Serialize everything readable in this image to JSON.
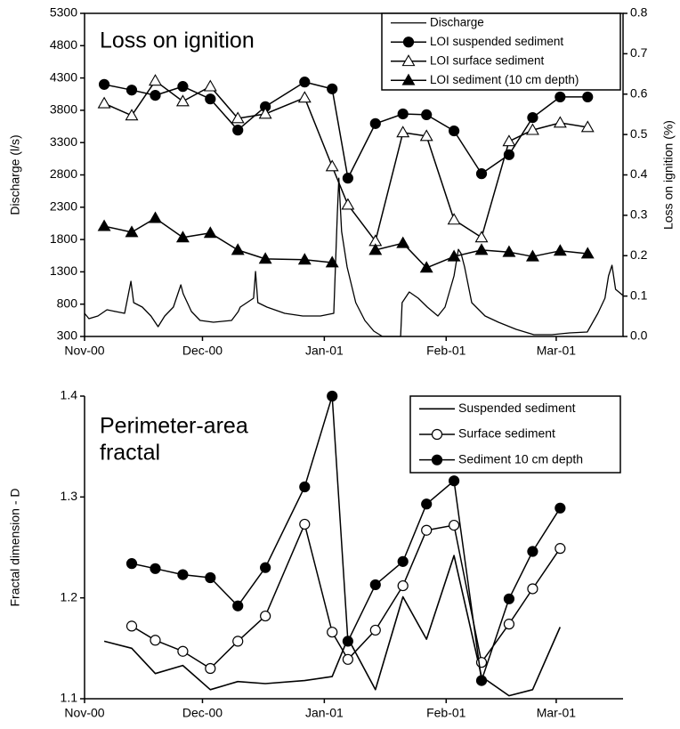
{
  "chart_data": [
    {
      "type": "line",
      "annotation": [
        "Loss on ignition"
      ],
      "y_label": "Discharge (l/s)",
      "y2_label": "Loss on ignition (%)",
      "xlim": [
        0,
        137
      ],
      "xticks": [
        {
          "value": 0,
          "label": "Nov-00"
        },
        {
          "value": 30,
          "label": "Dec-00"
        },
        {
          "value": 61,
          "label": "Jan-01"
        },
        {
          "value": 92,
          "label": "Feb-01"
        },
        {
          "value": 120,
          "label": "Mar-01"
        }
      ],
      "ylim": [
        300,
        5300
      ],
      "yticks": [
        300,
        800,
        1300,
        1800,
        2300,
        2800,
        3300,
        3800,
        4300,
        4800,
        5300
      ],
      "y2lim": [
        0,
        0.8
      ],
      "y2ticks": [
        {
          "value": 0,
          "label": "0.0"
        },
        0.1,
        0.2,
        0.3,
        0.4,
        0.5,
        0.6,
        0.7,
        0.8
      ],
      "legend": "upper right",
      "series": [
        {
          "name": "Discharge",
          "color": "#000000",
          "marker": "none",
          "line_width": 1.3,
          "x": [
            0,
            1.1,
            3.4,
            5.7,
            7.9,
            10.2,
            11.8,
            12.5,
            14.7,
            16.9,
            18.7,
            20.4,
            22.6,
            24.5,
            25.1,
            27.2,
            29.4,
            32.8,
            37.4,
            39.1,
            39.6,
            43.0,
            43.5,
            44.1,
            46.4,
            50.9,
            55.5,
            60.0,
            63.4,
            64.3,
            64.7,
            65.4,
            66.8,
            69.0,
            71.3,
            73.6,
            75.8,
            80.4,
            80.8,
            82.6,
            84.9,
            87.2,
            89.9,
            91.7,
            94.0,
            95.1,
            95.8,
            96.7,
            98.5,
            101.9,
            105.3,
            109.8,
            114.3,
            118.9,
            123.4,
            127.9,
            130.6,
            132.4,
            133.3,
            134.2,
            135.1,
            137
          ],
          "values": [
            658,
            575,
            617,
            713,
            686,
            658,
            1154,
            823,
            754,
            617,
            451,
            617,
            754,
            1099,
            961,
            686,
            548,
            520,
            548,
            686,
            754,
            892,
            1305,
            823,
            754,
            658,
            617,
            617,
            658,
            2200,
            2751,
            1925,
            1374,
            823,
            548,
            383,
            300,
            300,
            823,
            989,
            892,
            754,
            617,
            754,
            1236,
            1649,
            1581,
            1374,
            823,
            617,
            520,
            410,
            328,
            328,
            355,
            369,
            658,
            892,
            1236,
            1402,
            1030,
            933
          ]
        },
        {
          "name": "LOI suspended sediment",
          "color": "#000000",
          "marker": "circle-filled",
          "axis": "y2",
          "x": [
            5,
            12,
            18,
            25,
            32,
            39,
            46,
            56,
            63,
            67,
            74,
            81,
            87,
            94,
            101,
            108,
            114,
            121,
            128
          ],
          "values": [
            0.624,
            0.61,
            0.597,
            0.619,
            0.588,
            0.511,
            0.569,
            0.63,
            0.613,
            0.392,
            0.527,
            0.551,
            0.549,
            0.509,
            0.403,
            0.45,
            0.542,
            0.593,
            0.593
          ]
        },
        {
          "name": "LOI surface sediment",
          "color": "#000000",
          "marker": "triangle-open",
          "axis": "y2",
          "x": [
            5,
            12,
            18,
            25,
            32,
            39,
            46,
            56,
            63,
            67,
            74,
            81,
            87,
            94,
            101,
            108,
            114,
            121,
            128
          ],
          "values": [
            0.577,
            0.547,
            0.633,
            0.582,
            0.619,
            0.54,
            0.551,
            0.591,
            0.421,
            0.326,
            0.236,
            0.505,
            0.496,
            0.289,
            0.245,
            0.483,
            0.511,
            0.529,
            0.518
          ]
        },
        {
          "name": "LOI sediment (10 cm depth)",
          "color": "#000000",
          "marker": "triangle-filled",
          "axis": "y2",
          "x": [
            5,
            12,
            18,
            25,
            32,
            39,
            46,
            56,
            63,
            67,
            74,
            81,
            87,
            94,
            101,
            108,
            114,
            121,
            128
          ],
          "values": [
            0.273,
            0.258,
            0.293,
            0.245,
            0.256,
            0.214,
            0.192,
            0.19,
            0.183,
            null,
            0.214,
            0.231,
            0.17,
            0.198,
            0.214,
            0.209,
            0.198,
            0.212,
            0.205
          ]
        }
      ]
    },
    {
      "type": "line",
      "annotation": [
        "Perimeter-area",
        "fractal"
      ],
      "y_label": "Fractal dimension - D",
      "xlim": [
        0,
        137
      ],
      "xticks": [
        {
          "value": 0,
          "label": "Nov-00"
        },
        {
          "value": 30,
          "label": "Dec-00"
        },
        {
          "value": 61,
          "label": "Jan-01"
        },
        {
          "value": 92,
          "label": "Feb-01"
        },
        {
          "value": 120,
          "label": "Mar-01"
        }
      ],
      "ylim": [
        1.1,
        1.4
      ],
      "yticks": [
        1.1,
        1.2,
        1.3,
        1.4
      ],
      "legend": "upper right",
      "series": [
        {
          "name": "Suspended sediment",
          "color": "#000000",
          "marker": "none",
          "line_width": 1.6,
          "x": [
            5,
            12,
            18,
            25,
            32,
            39,
            46,
            56,
            63,
            67,
            74,
            81,
            87,
            94,
            101,
            108,
            114,
            121
          ],
          "values": [
            1.157,
            1.15,
            1.125,
            1.133,
            1.109,
            1.117,
            1.115,
            1.118,
            1.122,
            1.16,
            1.109,
            1.201,
            1.159,
            1.242,
            1.122,
            1.103,
            1.109,
            1.171
          ]
        },
        {
          "name": "Surface sediment",
          "color": "#000000",
          "marker": "circle-open",
          "x": [
            12,
            18,
            25,
            32,
            39,
            46,
            56,
            63,
            67,
            74,
            81,
            87,
            94,
            101,
            108,
            114,
            121
          ],
          "values": [
            1.172,
            1.158,
            1.147,
            1.13,
            1.157,
            1.182,
            1.273,
            1.166,
            1.139,
            1.168,
            1.212,
            1.267,
            1.272,
            1.136,
            1.174,
            1.209,
            1.249
          ]
        },
        {
          "name": "Sediment 10 cm depth",
          "color": "#000000",
          "marker": "circle-filled",
          "x": [
            12,
            18,
            25,
            32,
            39,
            46,
            56,
            63,
            67,
            74,
            81,
            87,
            94,
            101,
            108,
            114,
            121
          ],
          "values": [
            1.234,
            1.229,
            1.223,
            1.22,
            1.192,
            1.23,
            1.31,
            1.4,
            1.157,
            1.213,
            1.236,
            1.293,
            1.316,
            1.118,
            1.199,
            1.246,
            1.289
          ]
        }
      ]
    }
  ]
}
